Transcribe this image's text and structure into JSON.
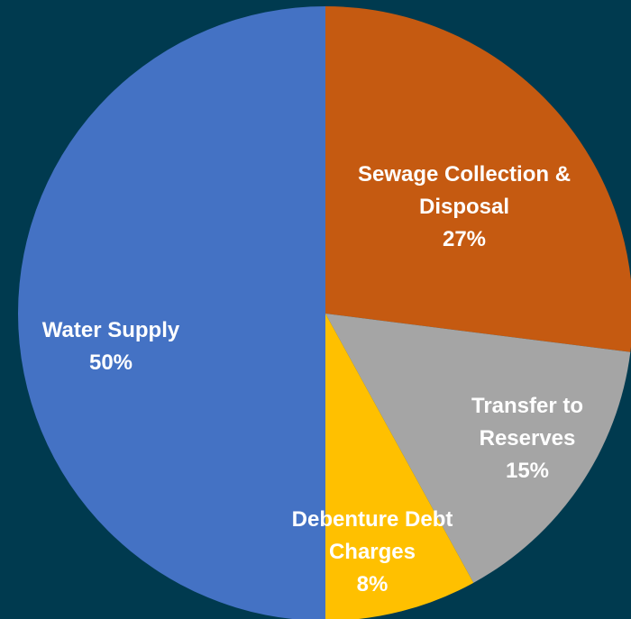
{
  "chart_data": {
    "type": "pie",
    "categories": [
      "Sewage Collection & Disposal",
      "Transfer to Reserves",
      "Debenture Debt Charges",
      "Water Supply"
    ],
    "values": [
      27,
      15,
      8,
      50
    ],
    "value_labels": [
      "27%",
      "15%",
      "8%",
      "50%"
    ],
    "colors": [
      "#c55a11",
      "#a5a5a5",
      "#ffc000",
      "#4472c4"
    ]
  }
}
